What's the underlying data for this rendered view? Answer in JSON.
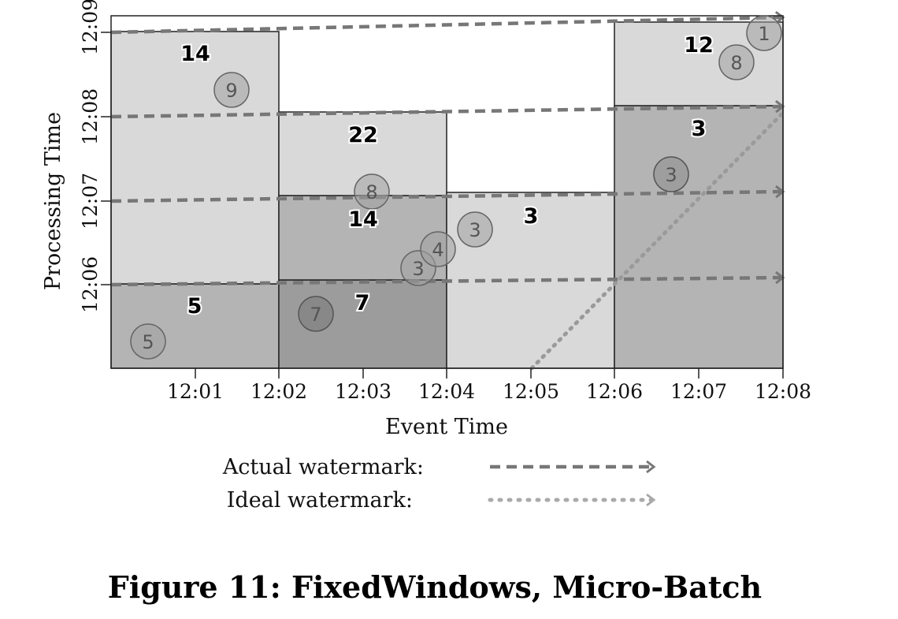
{
  "caption": "Figure 11: FixedWindows, Micro-Batch",
  "axes": {
    "xlabel": "Event Time",
    "ylabel": "Processing Time",
    "x_ticks": [
      "12:01",
      "12:02",
      "12:03",
      "12:04",
      "12:05",
      "12:06",
      "12:07",
      "12:08"
    ],
    "y_ticks": [
      "12:06",
      "12:07",
      "12:08",
      "12:09"
    ]
  },
  "legend": {
    "actual_label": "Actual watermark:",
    "ideal_label": "Ideal watermark:"
  },
  "panes": [
    {
      "window": [
        "12:00",
        "12:02"
      ],
      "processing": [
        "12:05",
        "12:06"
      ],
      "value": "5",
      "shade": "#b4b4b4"
    },
    {
      "window": [
        "12:00",
        "12:02"
      ],
      "processing": [
        "12:06",
        "12:09"
      ],
      "value": "14",
      "shade": "#d9d9d9"
    },
    {
      "window": [
        "12:02",
        "12:04"
      ],
      "processing": [
        "12:05",
        "12:06"
      ],
      "value": "7",
      "shade": "#9c9c9c"
    },
    {
      "window": [
        "12:02",
        "12:04"
      ],
      "processing": [
        "12:06",
        "12:07"
      ],
      "value": "14",
      "shade": "#b4b4b4"
    },
    {
      "window": [
        "12:02",
        "12:04"
      ],
      "processing": [
        "12:07",
        "12:08"
      ],
      "value": "22",
      "shade": "#d9d9d9"
    },
    {
      "window": [
        "12:04",
        "12:06"
      ],
      "processing": [
        "12:05",
        "12:07"
      ],
      "value": "3",
      "shade": "#d9d9d9"
    },
    {
      "window": [
        "12:06",
        "12:08"
      ],
      "processing": [
        "12:05",
        "12:08"
      ],
      "value": "3",
      "shade": "#b4b4b4"
    },
    {
      "window": [
        "12:06",
        "12:08"
      ],
      "processing": [
        "12:08",
        "12:09"
      ],
      "value": "12",
      "shade": "#d9d9d9"
    }
  ],
  "data_points": [
    {
      "value": "5"
    },
    {
      "value": "9"
    },
    {
      "value": "7"
    },
    {
      "value": "8"
    },
    {
      "value": "3"
    },
    {
      "value": "4"
    },
    {
      "value": "3"
    },
    {
      "value": "3"
    },
    {
      "value": "8"
    },
    {
      "value": "1"
    }
  ],
  "colors": {
    "light_pane": "#d9d9d9",
    "mid_pane": "#b4b4b4",
    "dark_pane": "#9c9c9c",
    "actual_watermark": "#777777",
    "ideal_watermark": "#aaaaaa"
  }
}
